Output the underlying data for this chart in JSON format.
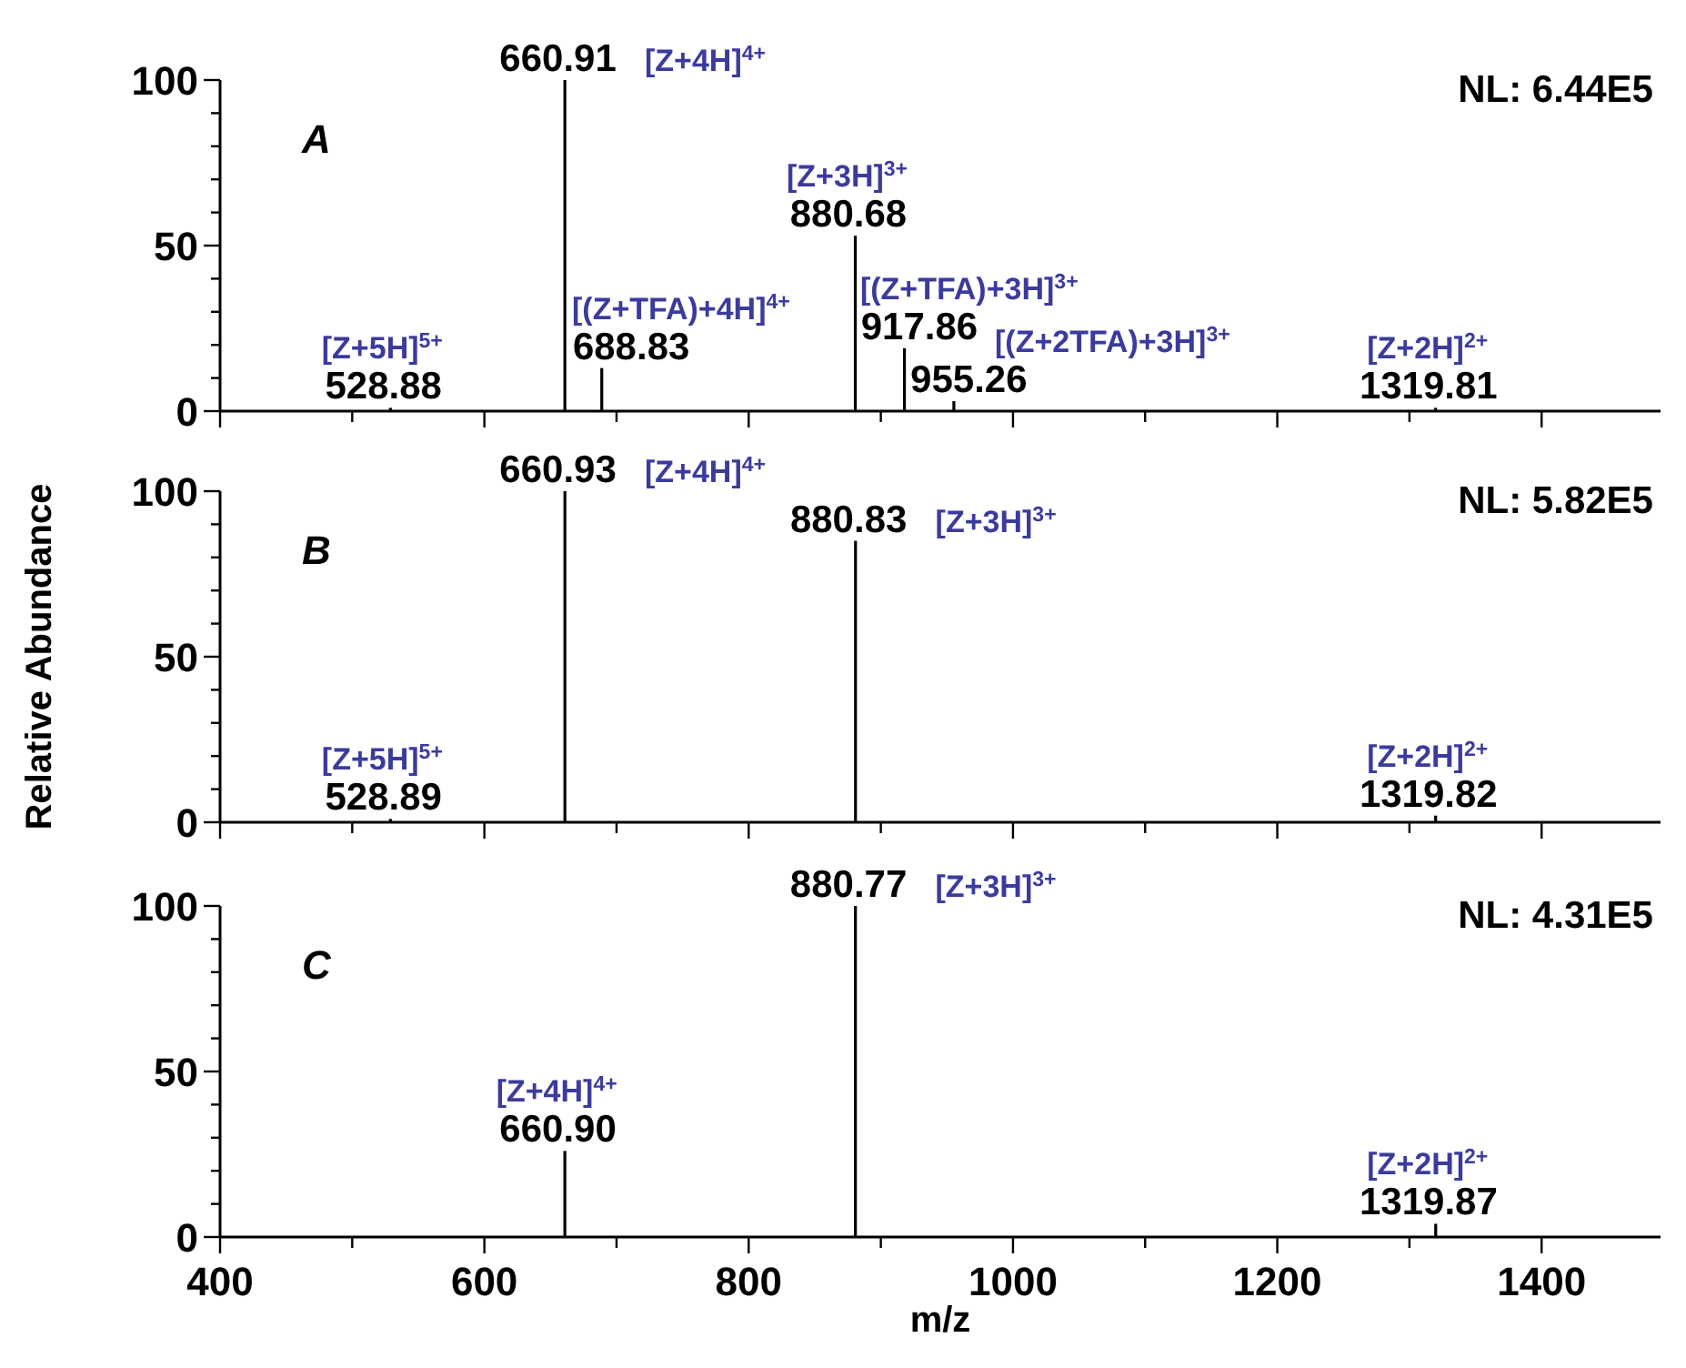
{
  "chart_data": [
    {
      "type": "bar",
      "x": [
        528.88,
        660.91,
        688.83,
        880.68,
        917.86,
        955.26,
        1319.81
      ],
      "values": [
        1,
        100,
        13,
        53,
        19,
        3,
        1
      ],
      "color": "#000000",
      "annotations": [
        "A",
        "NL: 6.44E5",
        {
          "text": "528.88",
          "x": 528.88,
          "y": 1
        },
        {
          "text": "[Z+5H]$^{5+}$",
          "x": 528.88,
          "y": 1
        },
        {
          "text": "660.91",
          "x": 660.91,
          "y": 100
        },
        {
          "text": "[Z+4H]$^{4+}$",
          "x": 660.91,
          "y": 100
        },
        {
          "text": "688.83",
          "x": 688.83,
          "y": 13
        },
        {
          "text": "[(Z+TFA)+4H]$^{4+}$",
          "x": 688.83,
          "y": 13
        },
        {
          "text": "880.68",
          "x": 880.68,
          "y": 53
        },
        {
          "text": "[Z+3H]$^{3+}$",
          "x": 880.68,
          "y": 53
        },
        {
          "text": "917.86",
          "x": 917.86,
          "y": 19
        },
        {
          "text": "[(Z+TFA)+3H]$^{3+}$",
          "x": 917.86,
          "y": 19
        },
        {
          "text": "955.26",
          "x": 955.26,
          "y": 3
        },
        {
          "text": "[(Z+2TFA)+3H]$^{3+}$",
          "x": 955.26,
          "y": 3
        },
        {
          "text": "1319.81",
          "x": 1319.81,
          "y": 1
        },
        {
          "text": "[Z+2H]$^{2+}$",
          "x": 1319.81,
          "y": 1
        }
      ],
      "xlim": [
        400,
        1490
      ],
      "xticks": [
        400,
        {
          "value": 500,
          "label": null
        },
        600,
        {
          "value": 700,
          "label": null
        },
        800,
        {
          "value": 900,
          "label": null
        },
        1000,
        {
          "value": 1100,
          "label": null
        },
        1200,
        {
          "value": 1300,
          "label": null
        },
        1400
      ],
      "ylim": [
        0,
        100
      ],
      "yticks": [
        0,
        {
          "value": 10,
          "label": null
        },
        {
          "value": 20,
          "label": null
        },
        {
          "value": 30,
          "label": null
        },
        {
          "value": 40,
          "label": null
        },
        50,
        {
          "value": 60,
          "label": null
        },
        {
          "value": 70,
          "label": null
        },
        {
          "value": 80,
          "label": null
        },
        {
          "value": 90,
          "label": null
        },
        100
      ],
      "tick_labels": "y"
    },
    {
      "type": "bar",
      "x": [
        528.89,
        660.93,
        880.83,
        1319.82
      ],
      "values": [
        1,
        100,
        85,
        2
      ],
      "color": "#000000",
      "annotations": [
        "B",
        "NL: 5.82E5",
        {
          "text": "528.89",
          "x": 528.89,
          "y": 1
        },
        {
          "text": "[Z+5H]$^{5+}$",
          "x": 528.89,
          "y": 1
        },
        {
          "text": "660.93",
          "x": 660.93,
          "y": 100
        },
        {
          "text": "[Z+4H]$^{4+}$",
          "x": 660.93,
          "y": 100
        },
        {
          "text": "880.83",
          "x": 880.83,
          "y": 85
        },
        {
          "text": "[Z+3H]$^{3+}$",
          "x": 880.83,
          "y": 85
        },
        {
          "text": "1319.82",
          "x": 1319.82,
          "y": 2
        },
        {
          "text": "[Z+2H]$^{2+}$",
          "x": 1319.82,
          "y": 2
        }
      ],
      "ylabel": "Relative Abundance",
      "xlim": [
        400,
        1490
      ],
      "xticks": [
        400,
        {
          "value": 500,
          "label": null
        },
        600,
        {
          "value": 700,
          "label": null
        },
        800,
        {
          "value": 900,
          "label": null
        },
        1000,
        {
          "value": 1100,
          "label": null
        },
        1200,
        {
          "value": 1300,
          "label": null
        },
        1400
      ],
      "ylim": [
        0,
        100
      ],
      "yticks": [
        0,
        {
          "value": 10,
          "label": null
        },
        {
          "value": 20,
          "label": null
        },
        {
          "value": 30,
          "label": null
        },
        {
          "value": 40,
          "label": null
        },
        50,
        {
          "value": 60,
          "label": null
        },
        {
          "value": 70,
          "label": null
        },
        {
          "value": 80,
          "label": null
        },
        {
          "value": 90,
          "label": null
        },
        100
      ],
      "tick_labels": "y"
    },
    {
      "type": "bar",
      "x": [
        660.9,
        880.77,
        1319.87
      ],
      "values": [
        26,
        100,
        4
      ],
      "color": "#000000",
      "annotations": [
        "C",
        "NL: 4.31E5",
        {
          "text": "660.90",
          "x": 660.9,
          "y": 26
        },
        {
          "text": "[Z+4H]$^{4+}$",
          "x": 660.9,
          "y": 26
        },
        {
          "text": "880.77",
          "x": 880.77,
          "y": 100
        },
        {
          "text": "[Z+3H]$^{3+}$",
          "x": 880.77,
          "y": 100
        },
        {
          "text": "1319.87",
          "x": 1319.87,
          "y": 4
        },
        {
          "text": "[Z+2H]$^{2+}$",
          "x": 1319.87,
          "y": 4
        }
      ],
      "xlabel": "m/z",
      "xlim": [
        400,
        1490
      ],
      "xticks": [
        400,
        {
          "value": 500,
          "label": null
        },
        600,
        {
          "value": 700,
          "label": null
        },
        800,
        {
          "value": 900,
          "label": null
        },
        1000,
        {
          "value": 1100,
          "label": null
        },
        1200,
        {
          "value": 1300,
          "label": null
        },
        1400
      ],
      "ylim": [
        0,
        100
      ],
      "yticks": [
        0,
        {
          "value": 10,
          "label": null
        },
        {
          "value": 20,
          "label": null
        },
        {
          "value": 30,
          "label": null
        },
        {
          "value": 40,
          "label": null
        },
        50,
        {
          "value": 60,
          "label": null
        },
        {
          "value": 70,
          "label": null
        },
        {
          "value": 80,
          "label": null
        },
        {
          "value": 90,
          "label": null
        },
        100
      ]
    }
  ]
}
